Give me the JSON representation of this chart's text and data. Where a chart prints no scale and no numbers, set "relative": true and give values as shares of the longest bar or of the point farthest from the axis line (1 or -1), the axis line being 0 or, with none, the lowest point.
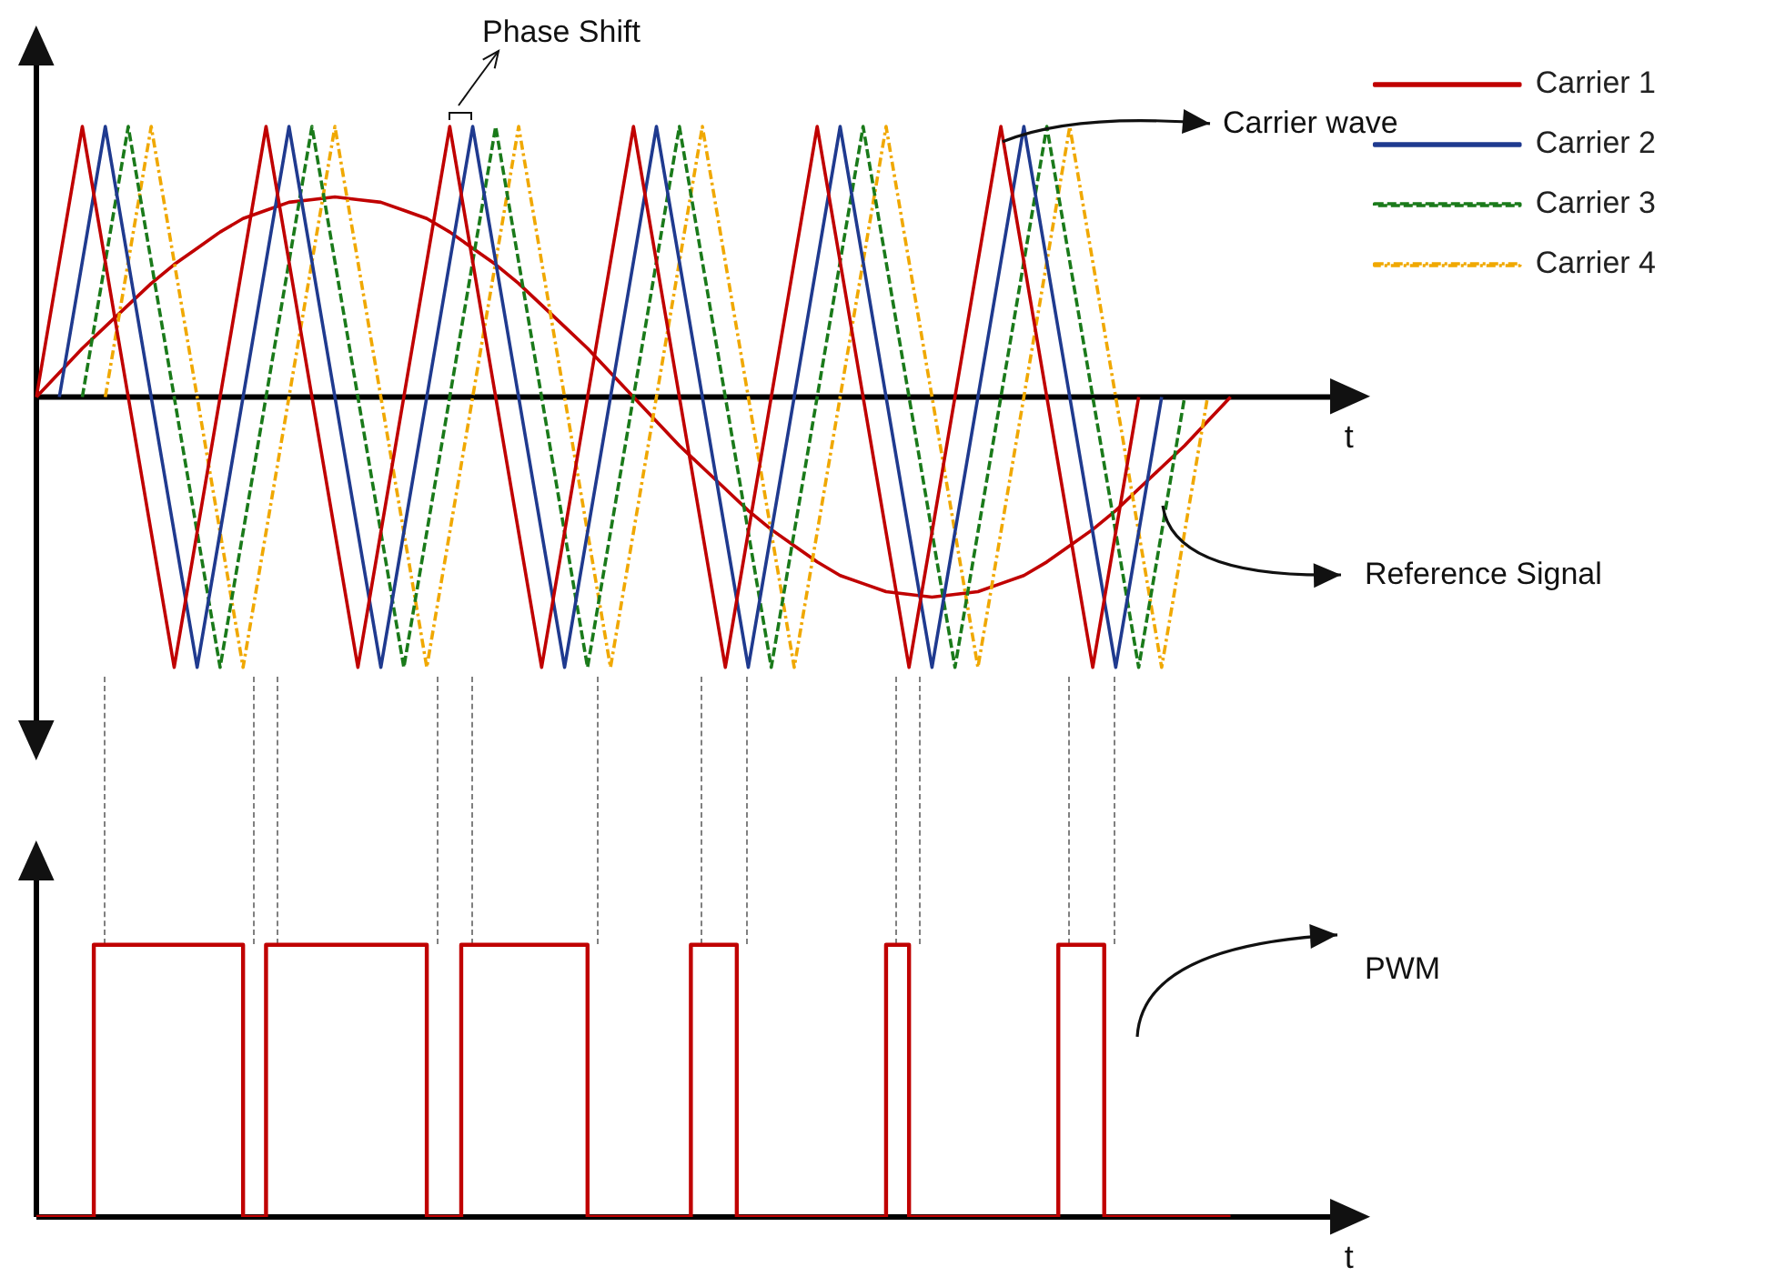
{
  "chart_data": [
    {
      "type": "line",
      "relative": true,
      "xlabel": "t",
      "legend": "right",
      "marker": "none",
      "categories": [
        null,
        null,
        null,
        null,
        null,
        null,
        null,
        null,
        null,
        null,
        null,
        null,
        null,
        null,
        null,
        null,
        null,
        null,
        null,
        null,
        null,
        null,
        null,
        null,
        null,
        null,
        null,
        null,
        null,
        null,
        null,
        null,
        null,
        null,
        null,
        null,
        null,
        null,
        null,
        null,
        null,
        null,
        null,
        null,
        null,
        null,
        null,
        null,
        null,
        null,
        null,
        null,
        null,
        null,
        null,
        null,
        null,
        null
      ],
      "series": [
        {
          "name": "Carrier 1",
          "color": "#c00000",
          "line_style": "solid",
          "values": [
            0,
            0.5,
            1,
            0.5,
            0,
            -0.5,
            -1,
            -0.5,
            0,
            0.5,
            1,
            0.5,
            0,
            -0.5,
            -1,
            -0.5,
            0,
            0.5,
            1,
            0.5,
            0,
            -0.5,
            -1,
            -0.5,
            0,
            0.5,
            1,
            0.5,
            0,
            -0.5,
            -1,
            -0.5,
            0,
            0.5,
            1,
            0.5,
            0,
            -0.5,
            -1,
            -0.5,
            0,
            0.5,
            1,
            0.5,
            0,
            -0.5,
            -1,
            -0.5,
            0,
            null,
            null,
            null,
            null,
            null,
            null,
            null,
            null,
            null
          ]
        },
        {
          "name": "Carrier 2",
          "color": "#1f3a8f",
          "line_style": "solid",
          "values": [
            null,
            0,
            0.5,
            1,
            0.5,
            0,
            -0.5,
            -1,
            -0.5,
            0,
            0.5,
            1,
            0.5,
            0,
            -0.5,
            -1,
            -0.5,
            0,
            0.5,
            1,
            0.5,
            0,
            -0.5,
            -1,
            -0.5,
            0,
            0.5,
            1,
            0.5,
            0,
            -0.5,
            -1,
            -0.5,
            0,
            0.5,
            1,
            0.5,
            0,
            -0.5,
            -1,
            -0.5,
            0,
            0.5,
            1,
            0.5,
            0,
            -0.5,
            -1,
            -0.5,
            0,
            null,
            null,
            null,
            null,
            null,
            null,
            null,
            null
          ]
        },
        {
          "name": "Carrier 3",
          "color": "#1a7a1a",
          "line_style": "dashed",
          "values": [
            null,
            null,
            0,
            0.5,
            1,
            0.5,
            0,
            -0.5,
            -1,
            -0.5,
            0,
            0.5,
            1,
            0.5,
            0,
            -0.5,
            -1,
            -0.5,
            0,
            0.5,
            1,
            0.5,
            0,
            -0.5,
            -1,
            -0.5,
            0,
            0.5,
            1,
            0.5,
            0,
            -0.5,
            -1,
            -0.5,
            0,
            0.5,
            1,
            0.5,
            0,
            -0.5,
            -1,
            -0.5,
            0,
            0.5,
            1,
            0.5,
            0,
            -0.5,
            -1,
            -0.5,
            0,
            null,
            null,
            null,
            null,
            null,
            null,
            null
          ]
        },
        {
          "name": "Carrier 4",
          "color": "#f0a800",
          "line_style": "dotted",
          "values": [
            null,
            null,
            null,
            0,
            0.5,
            1,
            0.5,
            0,
            -0.5,
            -1,
            -0.5,
            0,
            0.5,
            1,
            0.5,
            0,
            -0.5,
            -1,
            -0.5,
            0,
            0.5,
            1,
            0.5,
            0,
            -0.5,
            -1,
            -0.5,
            0,
            0.5,
            1,
            0.5,
            0,
            -0.5,
            -1,
            -0.5,
            0,
            0.5,
            1,
            0.5,
            0,
            -0.5,
            -1,
            -0.5,
            0,
            0.5,
            1,
            0.5,
            0,
            -0.5,
            -1,
            -0.5,
            0,
            null,
            null,
            null,
            null,
            null,
            null
          ]
        },
        {
          "color": "#c00000",
          "line_style": "solid",
          "values": [
            0,
            0.09,
            0.18,
            0.26,
            0.34,
            0.42,
            0.49,
            0.55,
            0.61,
            0.66,
            0.69,
            0.72,
            0.73,
            0.74,
            0.73,
            0.72,
            0.69,
            0.66,
            0.61,
            0.55,
            0.49,
            0.42,
            0.34,
            0.26,
            0.18,
            0.09,
            0,
            -0.09,
            -0.18,
            -0.26,
            -0.34,
            -0.42,
            -0.49,
            -0.55,
            -0.61,
            -0.66,
            -0.69,
            -0.72,
            -0.73,
            -0.74,
            -0.73,
            -0.72,
            -0.69,
            -0.66,
            -0.61,
            -0.55,
            -0.49,
            -0.42,
            -0.34,
            -0.26,
            -0.18,
            -0.09,
            0,
            null,
            null,
            null,
            null,
            null
          ]
        }
      ],
      "annotations": [
        "Phase Shift",
        "Carrier wave",
        "Reference Signal"
      ]
    },
    {
      "type": "step",
      "relative": true,
      "xlabel": "t",
      "marker": "none",
      "categories": [
        null,
        null,
        null,
        null,
        null,
        null,
        null,
        null,
        null,
        null,
        null,
        null,
        null,
        null,
        null,
        null,
        null,
        null,
        null,
        null,
        null,
        null,
        null,
        null,
        null,
        null,
        null,
        null,
        null,
        null,
        null,
        null,
        null,
        null,
        null,
        null,
        null,
        null,
        null,
        null,
        null,
        null,
        null,
        null,
        null,
        null,
        null,
        null,
        null,
        null,
        null,
        null,
        null,
        null,
        null,
        null,
        null,
        null,
        null,
        null,
        null,
        null,
        null,
        null,
        null,
        null,
        null,
        null,
        null,
        null,
        null,
        null,
        null,
        null,
        null,
        null,
        null,
        null,
        null,
        null,
        null,
        null,
        null,
        null,
        null,
        null,
        null,
        null,
        null,
        null,
        null,
        null,
        null,
        null,
        null,
        null,
        null,
        null,
        null,
        null,
        null,
        null,
        null,
        null,
        null,
        null,
        null,
        null,
        null,
        null,
        null,
        null,
        null,
        null,
        null
      ],
      "series": [
        {
          "color": "#c00000",
          "line_style": "solid",
          "values": [
            0,
            0,
            0,
            0,
            0,
            0,
            1,
            1,
            1,
            1,
            1,
            1,
            1,
            1,
            1,
            1,
            1,
            1,
            1,
            0,
            0,
            1,
            1,
            1,
            1,
            1,
            1,
            1,
            1,
            1,
            1,
            1,
            1,
            1,
            1,
            0,
            0,
            0,
            1,
            1,
            1,
            1,
            1,
            1,
            1,
            1,
            1,
            1,
            1,
            0,
            0,
            0,
            0,
            0,
            0,
            0,
            0,
            0,
            1,
            1,
            1,
            1,
            0,
            0,
            0,
            0,
            0,
            0,
            0,
            0,
            0,
            0,
            0,
            0,
            0,
            1,
            1,
            0,
            0,
            0,
            0,
            0,
            0,
            0,
            0,
            0,
            0,
            0,
            0,
            0,
            1,
            1,
            1,
            1,
            0,
            0,
            0,
            0,
            0,
            0,
            0,
            0,
            0,
            0,
            0,
            null,
            null,
            null,
            null,
            null,
            null,
            null,
            null,
            null,
            null
          ]
        }
      ],
      "annotations": [
        "PWM"
      ]
    }
  ]
}
